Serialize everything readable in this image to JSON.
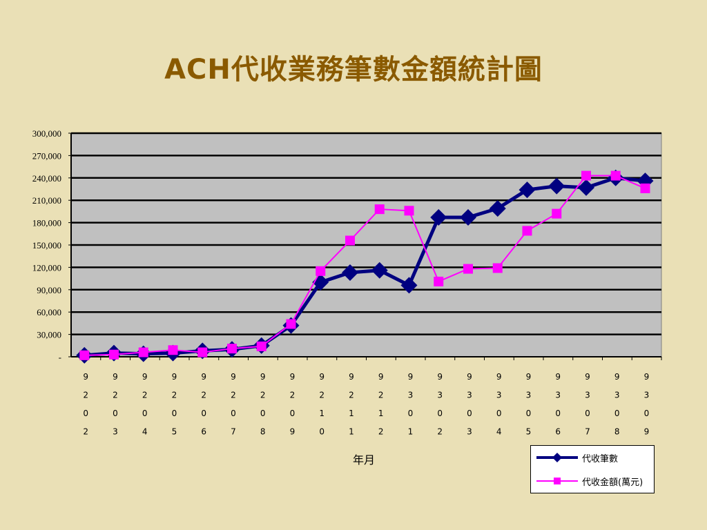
{
  "chart_data": {
    "type": "line",
    "title": "ACH代收業務筆數金額統計圖",
    "xlabel": "年月",
    "ylabel": "",
    "ylim": [
      0,
      300000
    ],
    "yticks": [
      "-",
      "30,000",
      "60,000",
      "90,000",
      "120,000",
      "150,000",
      "180,000",
      "210,000",
      "240,000",
      "270,000",
      "300,000"
    ],
    "grid": true,
    "legend": "bottom-right",
    "categories": [
      "9202",
      "9203",
      "9204",
      "9205",
      "9206",
      "9207",
      "9208",
      "9209",
      "9210",
      "9211",
      "9212",
      "9301",
      "9302",
      "9303",
      "9304",
      "9305",
      "9306",
      "9307",
      "9308",
      "9309"
    ],
    "series": [
      {
        "name": "代收筆數",
        "color": "#000080",
        "marker": "diamond",
        "values": [
          2000,
          5000,
          4000,
          5000,
          8000,
          10000,
          15000,
          42000,
          100000,
          113000,
          116000,
          96000,
          187000,
          187000,
          199000,
          224000,
          229000,
          227000,
          240000,
          236000
        ]
      },
      {
        "name": "代收金額(萬元)",
        "color": "#FF00FF",
        "marker": "square",
        "values": [
          2000,
          3000,
          6000,
          9000,
          6000,
          11000,
          14000,
          44000,
          115000,
          156000,
          198000,
          196000,
          101000,
          118000,
          119000,
          169000,
          192000,
          243000,
          243000,
          226000
        ]
      }
    ]
  }
}
